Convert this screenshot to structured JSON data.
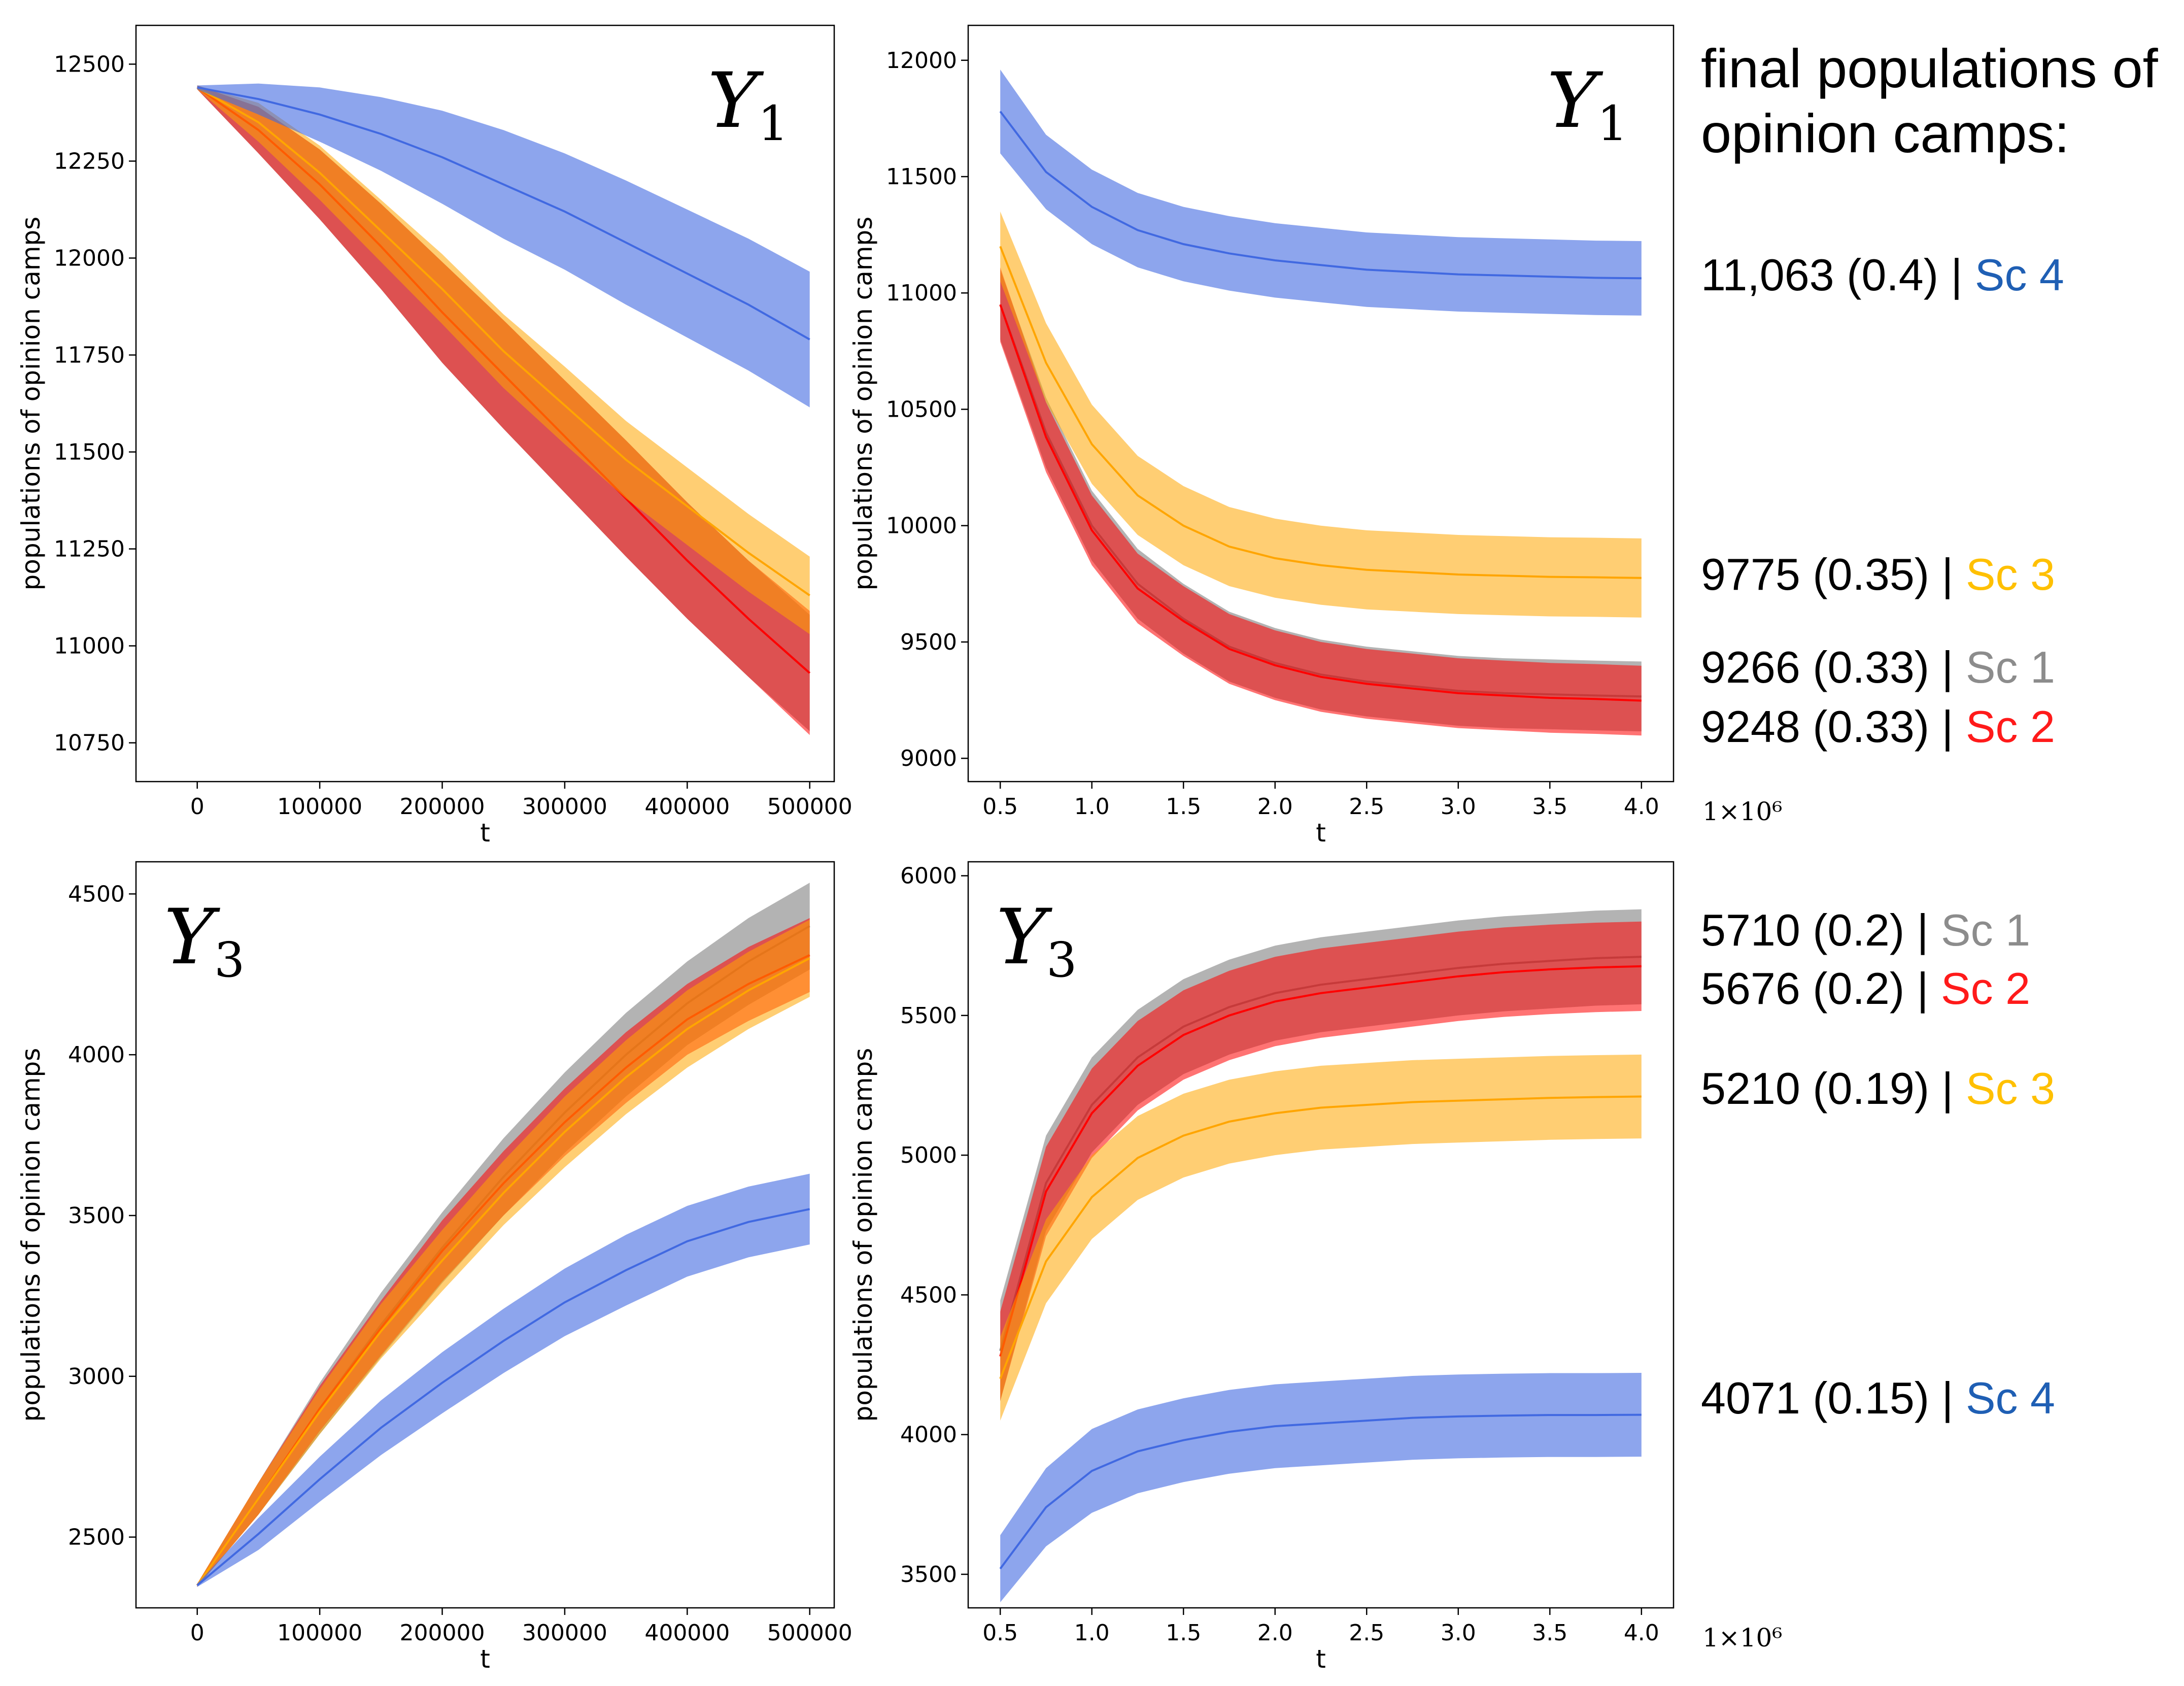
{
  "heading": [
    "final populations of",
    "opinion camps:"
  ],
  "colors": {
    "sc1": "#808080",
    "sc2": "#ff0000",
    "sc3": "#ffa500",
    "sc4": "#4169e1"
  },
  "label_colors": {
    "sc1": "#8c8c8c",
    "sc2": "#ff1a1a",
    "sc3": "#ffc000",
    "sc4": "#1f5fb4"
  },
  "chart_data": [
    {
      "type": "area",
      "panel": "top-left",
      "title_main": "Y",
      "title_sub": "1",
      "xlabel": "t",
      "ylabel": "populations of opinion camps",
      "xlim": [
        -50000,
        520000
      ],
      "ylim": [
        10650,
        12600
      ],
      "xticks": [
        0,
        100000,
        200000,
        300000,
        400000,
        500000
      ],
      "xtick_labels": [
        "0",
        "100000",
        "200000",
        "300000",
        "400000",
        "500000"
      ],
      "yticks": [
        10750,
        11000,
        11250,
        11500,
        11750,
        12000,
        12250,
        12500
      ],
      "ytick_labels": [
        "10750",
        "11000",
        "11250",
        "11500",
        "11750",
        "12000",
        "12250",
        "12500"
      ],
      "x": [
        0,
        50000,
        100000,
        150000,
        200000,
        250000,
        300000,
        350000,
        400000,
        450000,
        500000
      ],
      "series": [
        {
          "name": "Sc 1",
          "key": "sc1",
          "mean": [
            12440,
            12330,
            12190,
            12030,
            11860,
            11700,
            11540,
            11380,
            11220,
            11070,
            10930
          ],
          "halfwidth": [
            5,
            60,
            90,
            110,
            130,
            140,
            145,
            150,
            150,
            150,
            150
          ]
        },
        {
          "name": "Sc 2",
          "key": "sc2",
          "mean": [
            12440,
            12330,
            12190,
            12030,
            11860,
            11700,
            11540,
            11380,
            11220,
            11070,
            10930
          ],
          "halfwidth": [
            5,
            60,
            90,
            110,
            130,
            140,
            145,
            150,
            150,
            150,
            160
          ]
        },
        {
          "name": "Sc 3",
          "key": "sc3",
          "mean": [
            12440,
            12350,
            12220,
            12070,
            11920,
            11760,
            11620,
            11480,
            11360,
            11240,
            11130
          ],
          "halfwidth": [
            5,
            50,
            70,
            80,
            90,
            95,
            100,
            100,
            100,
            100,
            100
          ]
        },
        {
          "name": "Sc 4",
          "key": "sc4",
          "mean": [
            12440,
            12410,
            12370,
            12320,
            12260,
            12190,
            12120,
            12040,
            11960,
            11880,
            11790
          ],
          "halfwidth": [
            5,
            40,
            70,
            95,
            120,
            140,
            150,
            160,
            165,
            170,
            175
          ]
        }
      ]
    },
    {
      "type": "area",
      "panel": "top-right",
      "title_main": "Y",
      "title_sub": "1",
      "xlabel": "t",
      "ylabel": "populations of opinion camps",
      "x_multiplier": "1×10⁶",
      "xlim": [
        0.325,
        4.175
      ],
      "ylim": [
        8900,
        12150
      ],
      "xticks": [
        0.5,
        1.0,
        1.5,
        2.0,
        2.5,
        3.0,
        3.5,
        4.0
      ],
      "xtick_labels": [
        "0.5",
        "1.0",
        "1.5",
        "2.0",
        "2.5",
        "3.0",
        "3.5",
        "4.0"
      ],
      "yticks": [
        9000,
        9500,
        10000,
        10500,
        11000,
        11500,
        12000
      ],
      "ytick_labels": [
        "9000",
        "9500",
        "10000",
        "10500",
        "11000",
        "11500",
        "12000"
      ],
      "x": [
        0.5,
        0.75,
        1.0,
        1.25,
        1.5,
        1.75,
        2.0,
        2.25,
        2.5,
        2.75,
        3.0,
        3.25,
        3.5,
        3.75,
        4.0
      ],
      "series": [
        {
          "name": "Sc 1",
          "key": "sc1",
          "mean": [
            10950,
            10400,
            10000,
            9750,
            9600,
            9480,
            9410,
            9360,
            9330,
            9310,
            9290,
            9280,
            9275,
            9270,
            9266
          ],
          "halfwidth": [
            150,
            150,
            150,
            150,
            150,
            150,
            150,
            150,
            150,
            150,
            150,
            150,
            150,
            150,
            150
          ]
        },
        {
          "name": "Sc 2",
          "key": "sc2",
          "mean": [
            10950,
            10380,
            9980,
            9730,
            9590,
            9470,
            9400,
            9350,
            9320,
            9300,
            9280,
            9270,
            9260,
            9255,
            9248
          ],
          "halfwidth": [
            160,
            150,
            150,
            150,
            150,
            150,
            150,
            150,
            150,
            150,
            150,
            150,
            150,
            150,
            150
          ]
        },
        {
          "name": "Sc 3",
          "key": "sc3",
          "mean": [
            11200,
            10700,
            10350,
            10130,
            10000,
            9910,
            9860,
            9830,
            9810,
            9800,
            9790,
            9785,
            9780,
            9778,
            9775
          ],
          "halfwidth": [
            150,
            170,
            170,
            170,
            170,
            170,
            170,
            170,
            170,
            170,
            170,
            170,
            170,
            170,
            170
          ]
        },
        {
          "name": "Sc 4",
          "key": "sc4",
          "mean": [
            11780,
            11520,
            11370,
            11270,
            11210,
            11170,
            11140,
            11120,
            11100,
            11090,
            11080,
            11075,
            11070,
            11065,
            11063
          ],
          "halfwidth": [
            180,
            160,
            160,
            160,
            160,
            160,
            160,
            160,
            160,
            160,
            160,
            160,
            160,
            160,
            160
          ]
        }
      ]
    },
    {
      "type": "area",
      "panel": "bottom-left",
      "title_main": "Y",
      "title_sub": "3",
      "xlabel": "t",
      "ylabel": "populations of opinion camps",
      "xlim": [
        -50000,
        520000
      ],
      "ylim": [
        2280,
        4600
      ],
      "xticks": [
        0,
        100000,
        200000,
        300000,
        400000,
        500000
      ],
      "xtick_labels": [
        "0",
        "100000",
        "200000",
        "300000",
        "400000",
        "500000"
      ],
      "yticks": [
        2500,
        3000,
        3500,
        4000,
        4500
      ],
      "ytick_labels": [
        "2500",
        "3000",
        "3500",
        "4000",
        "4500"
      ],
      "x": [
        0,
        50000,
        100000,
        150000,
        200000,
        250000,
        300000,
        350000,
        400000,
        450000,
        500000
      ],
      "series": [
        {
          "name": "Sc 1",
          "key": "sc1",
          "mean": [
            2350,
            2620,
            2900,
            3160,
            3400,
            3620,
            3820,
            4000,
            4160,
            4290,
            4400
          ],
          "halfwidth": [
            5,
            50,
            80,
            100,
            110,
            120,
            125,
            130,
            130,
            135,
            135
          ]
        },
        {
          "name": "Sc 2",
          "key": "sc2",
          "mean": [
            2350,
            2620,
            2900,
            3150,
            3390,
            3600,
            3790,
            3960,
            4110,
            4220,
            4310
          ],
          "halfwidth": [
            5,
            50,
            70,
            85,
            95,
            100,
            105,
            110,
            110,
            115,
            115
          ]
        },
        {
          "name": "Sc 3",
          "key": "sc3",
          "mean": [
            2350,
            2620,
            2890,
            3140,
            3360,
            3570,
            3760,
            3930,
            4080,
            4200,
            4300
          ],
          "halfwidth": [
            5,
            50,
            70,
            85,
            95,
            100,
            110,
            115,
            120,
            120,
            120
          ]
        },
        {
          "name": "Sc 4",
          "key": "sc4",
          "mean": [
            2350,
            2510,
            2680,
            2840,
            2980,
            3110,
            3230,
            3330,
            3420,
            3480,
            3520
          ],
          "halfwidth": [
            5,
            50,
            70,
            85,
            95,
            100,
            105,
            110,
            110,
            110,
            110
          ]
        }
      ]
    },
    {
      "type": "area",
      "panel": "bottom-right",
      "title_main": "Y",
      "title_sub": "3",
      "xlabel": "t",
      "ylabel": "populations of opinion camps",
      "x_multiplier": "1×10⁶",
      "xlim": [
        0.325,
        4.175
      ],
      "ylim": [
        3380,
        6050
      ],
      "xticks": [
        0.5,
        1.0,
        1.5,
        2.0,
        2.5,
        3.0,
        3.5,
        4.0
      ],
      "xtick_labels": [
        "0.5",
        "1.0",
        "1.5",
        "2.0",
        "2.5",
        "3.0",
        "3.5",
        "4.0"
      ],
      "yticks": [
        3500,
        4000,
        4500,
        5000,
        5500,
        6000
      ],
      "ytick_labels": [
        "3500",
        "4000",
        "4500",
        "5000",
        "5500",
        "6000"
      ],
      "x": [
        0.5,
        0.75,
        1.0,
        1.25,
        1.5,
        1.75,
        2.0,
        2.25,
        2.5,
        2.75,
        3.0,
        3.25,
        3.5,
        3.75,
        4.0
      ],
      "series": [
        {
          "name": "Sc 1",
          "key": "sc1",
          "mean": [
            4300,
            4900,
            5180,
            5350,
            5460,
            5530,
            5580,
            5610,
            5630,
            5650,
            5670,
            5685,
            5695,
            5705,
            5710
          ],
          "halfwidth": [
            180,
            170,
            170,
            170,
            170,
            170,
            170,
            170,
            170,
            170,
            170,
            170,
            170,
            170,
            170
          ]
        },
        {
          "name": "Sc 2",
          "key": "sc2",
          "mean": [
            4280,
            4870,
            5150,
            5320,
            5430,
            5500,
            5550,
            5580,
            5600,
            5620,
            5640,
            5655,
            5665,
            5672,
            5676
          ],
          "halfwidth": [
            160,
            160,
            160,
            160,
            160,
            160,
            160,
            160,
            160,
            160,
            160,
            160,
            160,
            160,
            160
          ]
        },
        {
          "name": "Sc 3",
          "key": "sc3",
          "mean": [
            4200,
            4620,
            4850,
            4990,
            5070,
            5120,
            5150,
            5170,
            5180,
            5190,
            5195,
            5200,
            5205,
            5208,
            5210
          ],
          "halfwidth": [
            150,
            150,
            150,
            150,
            150,
            150,
            150,
            150,
            150,
            150,
            150,
            150,
            150,
            150,
            150
          ]
        },
        {
          "name": "Sc 4",
          "key": "sc4",
          "mean": [
            3520,
            3740,
            3870,
            3940,
            3980,
            4010,
            4030,
            4040,
            4050,
            4060,
            4065,
            4068,
            4070,
            4070,
            4071
          ],
          "halfwidth": [
            120,
            140,
            150,
            150,
            150,
            150,
            150,
            150,
            150,
            150,
            150,
            150,
            150,
            150,
            150
          ]
        }
      ]
    }
  ],
  "annotations": [
    {
      "name": "ann-y1-sc4",
      "value": "11,063 (0.4)",
      "sep": " | ",
      "label": "Sc 4",
      "key": "sc4"
    },
    {
      "name": "ann-y1-sc3",
      "value": "9775 (0.35)",
      "sep": " | ",
      "label": "Sc 3",
      "key": "sc3"
    },
    {
      "name": "ann-y1-sc1",
      "value": "9266 (0.33)",
      "sep": " | ",
      "label": "Sc 1",
      "key": "sc1"
    },
    {
      "name": "ann-y1-sc2",
      "value": "9248 (0.33)",
      "sep": " | ",
      "label": "Sc 2",
      "key": "sc2"
    },
    {
      "name": "ann-y3-sc1",
      "value": "5710 (0.2)",
      "sep": " | ",
      "label": "Sc 1",
      "key": "sc1"
    },
    {
      "name": "ann-y3-sc2",
      "value": "5676 (0.2)",
      "sep": " | ",
      "label": "Sc 2",
      "key": "sc2"
    },
    {
      "name": "ann-y3-sc3",
      "value": "5210 (0.19)",
      "sep": " | ",
      "label": "Sc 3",
      "key": "sc3"
    },
    {
      "name": "ann-y3-sc4",
      "value": "4071 (0.15)",
      "sep": " | ",
      "label": "Sc 4",
      "key": "sc4"
    }
  ]
}
